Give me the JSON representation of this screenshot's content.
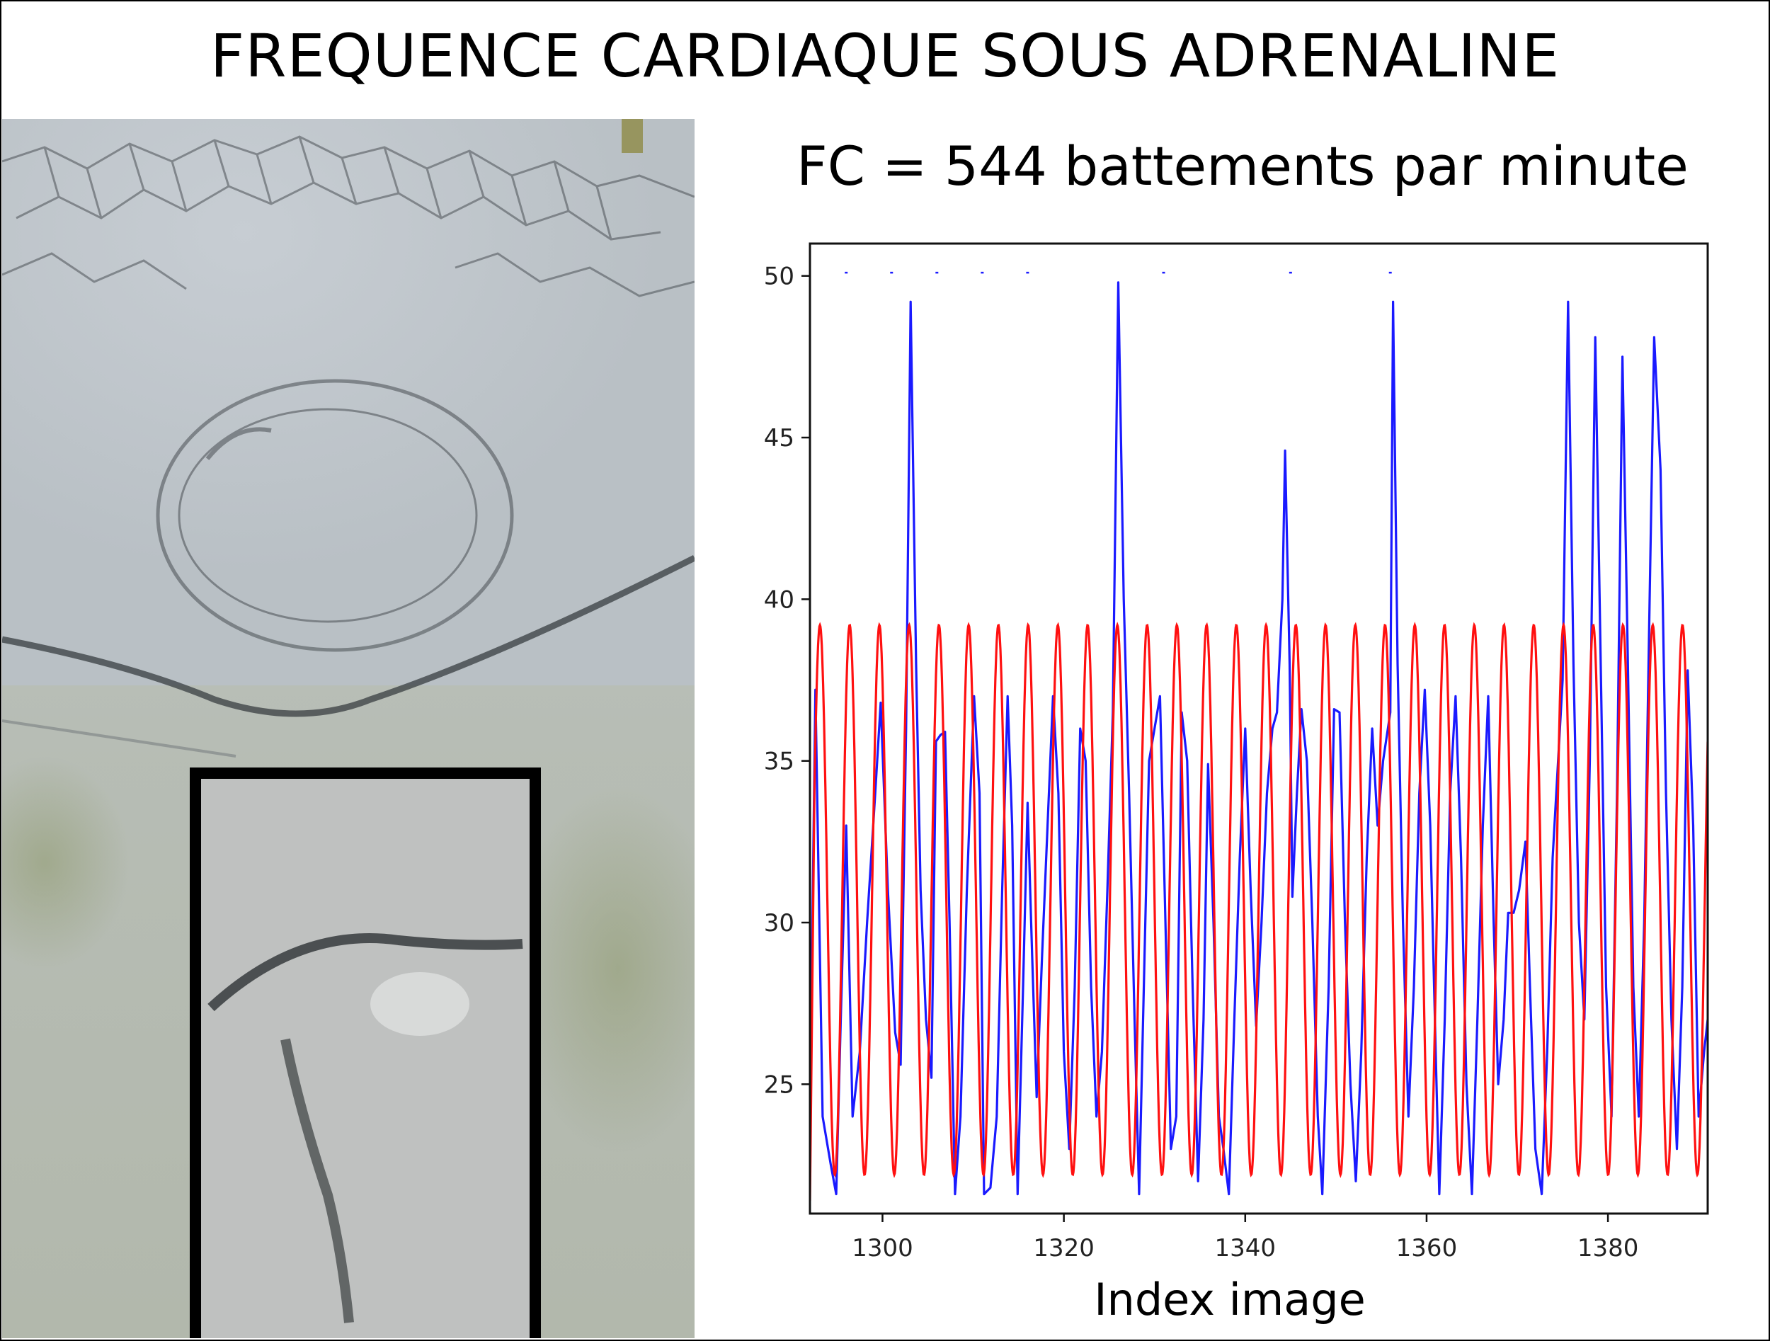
{
  "header": {
    "title": "FREQUENCE CARDIAQUE SOUS ADRENALINE"
  },
  "annotation": {
    "fc_text": "FC = 544 battements par minute"
  },
  "image_panel": {
    "description_icon": "microscope-image-icon"
  },
  "colors": {
    "signal": "#1a1aff",
    "fit": "#ff1010",
    "frame": "#000000"
  },
  "chart_data": {
    "type": "line",
    "title": "",
    "xlabel": "Index image",
    "ylabel": "",
    "xlim": [
      1292,
      1391
    ],
    "ylim": [
      21,
      51
    ],
    "x_ticks": [
      1300,
      1320,
      1340,
      1360,
      1380
    ],
    "y_ticks": [
      25,
      30,
      35,
      40,
      45,
      50
    ],
    "grid": false,
    "series": [
      {
        "color": "#1a1aff",
        "style": "line",
        "points": [
          [
            1292.0,
            24.0
          ],
          [
            1292.6,
            37.2
          ],
          [
            1293.4,
            24.0
          ],
          [
            1294.3,
            22.5
          ],
          [
            1294.9,
            21.6
          ],
          [
            1295.4,
            27.0
          ],
          [
            1296.0,
            33.0
          ],
          [
            1296.7,
            24.0
          ],
          [
            1297.5,
            26.0
          ],
          [
            1298.3,
            30.0
          ],
          [
            1299.2,
            34.0
          ],
          [
            1299.8,
            36.8
          ],
          [
            1300.6,
            31.0
          ],
          [
            1301.4,
            26.6
          ],
          [
            1302.0,
            25.6
          ],
          [
            1302.6,
            36.0
          ],
          [
            1303.1,
            49.2
          ],
          [
            1303.7,
            38.0
          ],
          [
            1304.2,
            31.0
          ],
          [
            1304.8,
            27.0
          ],
          [
            1305.4,
            25.2
          ],
          [
            1305.9,
            35.6
          ],
          [
            1306.4,
            35.8
          ],
          [
            1306.9,
            35.9
          ],
          [
            1307.4,
            30.0
          ],
          [
            1308.0,
            21.6
          ],
          [
            1308.6,
            24.0
          ],
          [
            1309.3,
            31.0
          ],
          [
            1310.1,
            37.0
          ],
          [
            1310.7,
            34.0
          ],
          [
            1311.2,
            21.6
          ],
          [
            1311.9,
            21.8
          ],
          [
            1312.6,
            24.0
          ],
          [
            1313.2,
            31.0
          ],
          [
            1313.8,
            37.0
          ],
          [
            1314.3,
            33.0
          ],
          [
            1314.9,
            21.6
          ],
          [
            1315.5,
            28.0
          ],
          [
            1316.0,
            33.7
          ],
          [
            1316.5,
            29.0
          ],
          [
            1317.0,
            24.6
          ],
          [
            1317.6,
            29.0
          ],
          [
            1318.2,
            33.0
          ],
          [
            1318.8,
            37.0
          ],
          [
            1319.4,
            34.0
          ],
          [
            1320.0,
            26.0
          ],
          [
            1320.6,
            23.0
          ],
          [
            1321.2,
            28.0
          ],
          [
            1321.8,
            36.0
          ],
          [
            1322.4,
            35.0
          ],
          [
            1323.0,
            28.0
          ],
          [
            1323.6,
            24.0
          ],
          [
            1324.2,
            26.0
          ],
          [
            1324.8,
            31.0
          ],
          [
            1325.4,
            36.5
          ],
          [
            1326.0,
            49.8
          ],
          [
            1326.6,
            40.0
          ],
          [
            1327.2,
            34.0
          ],
          [
            1327.8,
            27.0
          ],
          [
            1328.3,
            21.6
          ],
          [
            1328.9,
            29.0
          ],
          [
            1329.4,
            35.0
          ],
          [
            1330.0,
            36.0
          ],
          [
            1330.6,
            37.0
          ],
          [
            1331.2,
            30.0
          ],
          [
            1331.8,
            23.0
          ],
          [
            1332.4,
            24.0
          ],
          [
            1333.0,
            36.5
          ],
          [
            1333.6,
            35.0
          ],
          [
            1334.2,
            28.0
          ],
          [
            1334.8,
            22.0
          ],
          [
            1335.4,
            27.0
          ],
          [
            1335.9,
            34.9
          ],
          [
            1336.5,
            30.0
          ],
          [
            1337.1,
            24.0
          ],
          [
            1337.6,
            23.0
          ],
          [
            1338.2,
            21.6
          ],
          [
            1338.8,
            27.0
          ],
          [
            1339.4,
            32.0
          ],
          [
            1340.0,
            36.0
          ],
          [
            1340.6,
            31.0
          ],
          [
            1341.2,
            26.8
          ],
          [
            1341.8,
            30.0
          ],
          [
            1342.4,
            34.0
          ],
          [
            1343.0,
            36.0
          ],
          [
            1343.5,
            36.5
          ],
          [
            1344.1,
            40.0
          ],
          [
            1344.4,
            44.6
          ],
          [
            1344.9,
            38.0
          ],
          [
            1345.2,
            30.8
          ],
          [
            1345.7,
            34.0
          ],
          [
            1346.2,
            36.6
          ],
          [
            1346.8,
            35.0
          ],
          [
            1347.4,
            30.0
          ],
          [
            1348.0,
            24.0
          ],
          [
            1348.5,
            21.6
          ],
          [
            1349.2,
            28.0
          ],
          [
            1349.8,
            36.6
          ],
          [
            1350.4,
            36.5
          ],
          [
            1351.0,
            30.0
          ],
          [
            1351.6,
            25.0
          ],
          [
            1352.2,
            22.0
          ],
          [
            1352.8,
            26.0
          ],
          [
            1353.4,
            32.0
          ],
          [
            1354.0,
            36.0
          ],
          [
            1354.6,
            33.0
          ],
          [
            1355.2,
            35.0
          ],
          [
            1356.0,
            36.5
          ],
          [
            1356.3,
            49.2
          ],
          [
            1356.8,
            38.0
          ],
          [
            1357.4,
            30.0
          ],
          [
            1358.0,
            24.0
          ],
          [
            1358.6,
            28.0
          ],
          [
            1359.2,
            34.0
          ],
          [
            1359.8,
            37.2
          ],
          [
            1360.4,
            33.0
          ],
          [
            1361.0,
            26.0
          ],
          [
            1361.4,
            21.6
          ],
          [
            1362.0,
            27.0
          ],
          [
            1362.6,
            34.0
          ],
          [
            1363.2,
            37.0
          ],
          [
            1363.8,
            32.0
          ],
          [
            1364.4,
            25.0
          ],
          [
            1365.0,
            21.6
          ],
          [
            1365.6,
            27.0
          ],
          [
            1366.2,
            33.0
          ],
          [
            1366.8,
            37.0
          ],
          [
            1367.4,
            30.0
          ],
          [
            1367.9,
            25.0
          ],
          [
            1368.5,
            27.0
          ],
          [
            1369.0,
            30.3
          ],
          [
            1369.6,
            30.3
          ],
          [
            1370.2,
            31.0
          ],
          [
            1370.9,
            32.5
          ],
          [
            1371.4,
            28.0
          ],
          [
            1372.0,
            23.0
          ],
          [
            1372.7,
            21.6
          ],
          [
            1373.3,
            26.0
          ],
          [
            1373.9,
            32.0
          ],
          [
            1374.5,
            35.0
          ],
          [
            1375.0,
            37.5
          ],
          [
            1375.6,
            49.2
          ],
          [
            1376.2,
            38.0
          ],
          [
            1376.8,
            30.0
          ],
          [
            1377.4,
            27.0
          ],
          [
            1378.0,
            35.0
          ],
          [
            1378.6,
            48.1
          ],
          [
            1379.2,
            38.0
          ],
          [
            1379.8,
            28.0
          ],
          [
            1380.4,
            24.0
          ],
          [
            1381.0,
            34.0
          ],
          [
            1381.6,
            47.5
          ],
          [
            1382.2,
            38.0
          ],
          [
            1382.8,
            28.0
          ],
          [
            1383.4,
            24.0
          ],
          [
            1384.0,
            30.0
          ],
          [
            1384.6,
            40.0
          ],
          [
            1385.1,
            48.1
          ],
          [
            1385.8,
            44.0
          ],
          [
            1386.4,
            34.0
          ],
          [
            1387.0,
            27.0
          ],
          [
            1387.6,
            23.0
          ],
          [
            1388.2,
            28.0
          ],
          [
            1388.8,
            37.8
          ],
          [
            1389.4,
            33.0
          ],
          [
            1390.0,
            24.0
          ],
          [
            1390.6,
            26.0
          ],
          [
            1391.0,
            27.0
          ]
        ]
      },
      {
        "color": "#ff1010",
        "style": "sinusoid",
        "min": 22.2,
        "max": 39.2,
        "period": 3.28,
        "first_peak": 1293.1,
        "start_value": 21.4
      },
      {
        "color": "#1a1aff",
        "style": "markers",
        "points": [
          [
            1296,
            50.1
          ],
          [
            1301,
            50.1
          ],
          [
            1306,
            50.1
          ],
          [
            1311,
            50.1
          ],
          [
            1316,
            50.1
          ],
          [
            1331,
            50.1
          ],
          [
            1345,
            50.1
          ],
          [
            1356,
            50.1
          ]
        ]
      }
    ]
  }
}
